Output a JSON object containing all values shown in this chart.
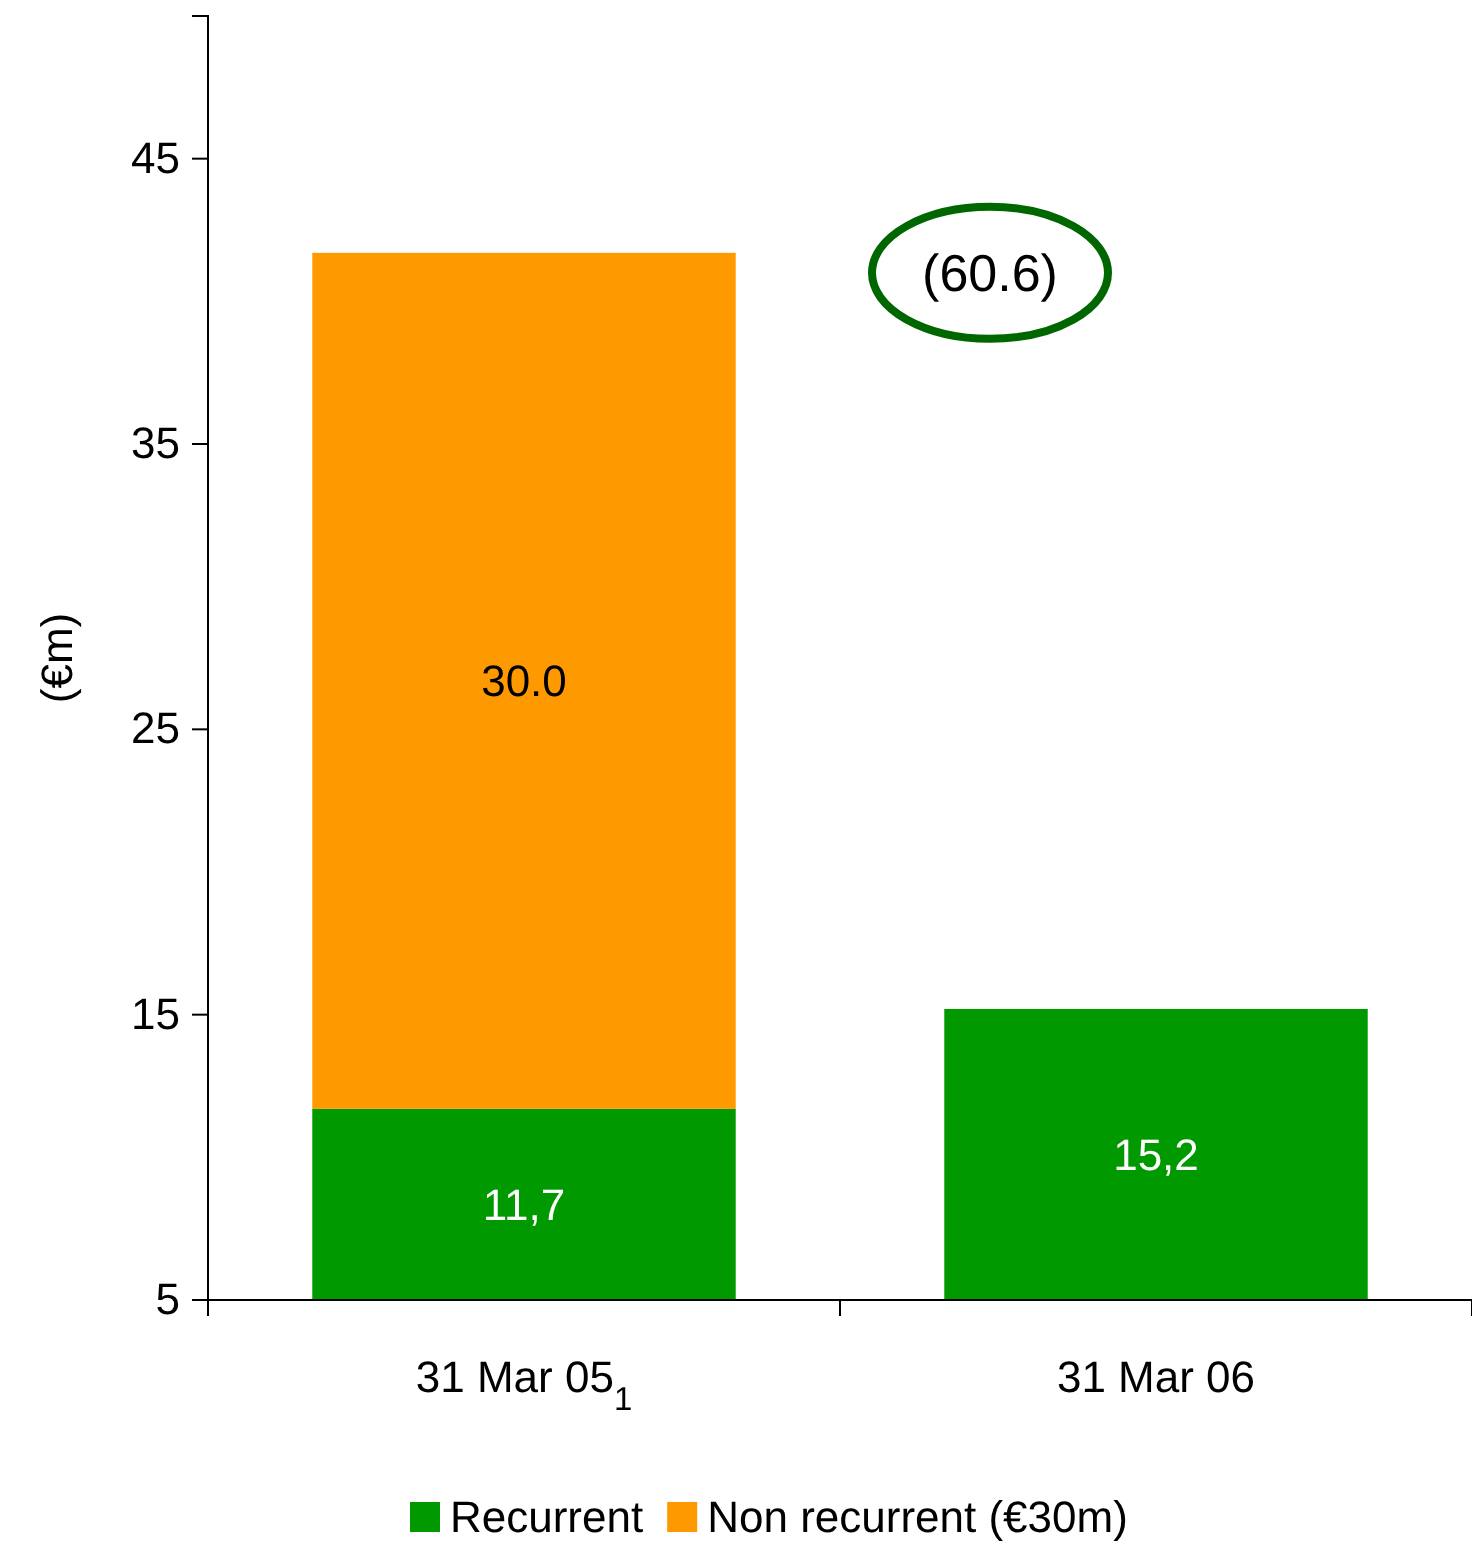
{
  "chart_data": {
    "type": "bar",
    "ylabel": "(€m)",
    "categories": [
      "31 Mar 05$_{1}$",
      "31 Mar 06"
    ],
    "stacked": true,
    "series": [
      {
        "name": "Recurrent",
        "color": "#009900",
        "values": [
          11.7,
          15.2
        ],
        "value_labels": [
          "11,7",
          "15,2"
        ]
      },
      {
        "name": "Non recurrent (€30m)",
        "color": "#ff9900",
        "values": [
          30.0,
          null
        ],
        "value_labels": [
          "30.0",
          null
        ]
      }
    ],
    "ylim": [
      5,
      50
    ],
    "yticks": [
      5,
      15,
      25,
      35,
      45
    ],
    "grid": false,
    "legend": "bottom",
    "annotations": [
      "(60.6)"
    ]
  }
}
